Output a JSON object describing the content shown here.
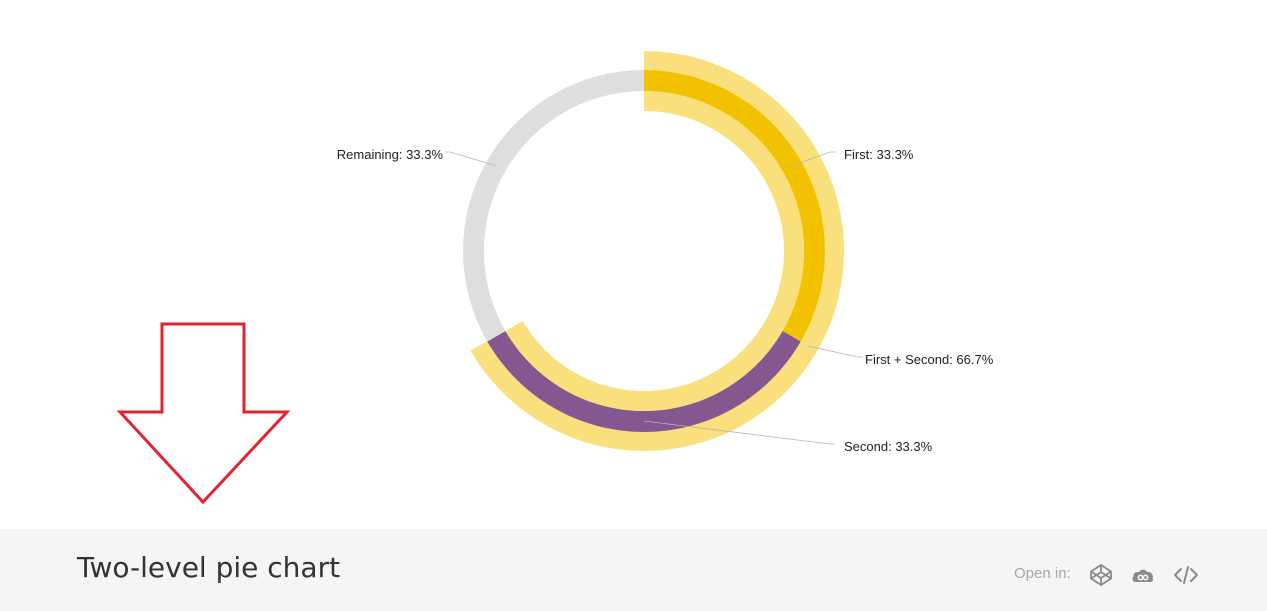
{
  "chart_data": {
    "type": "pie",
    "title": "Two-level pie chart",
    "levels": [
      {
        "level": "outer",
        "slices": [
          {
            "label": "First + Second",
            "value": 66.7,
            "display": "First + Second: 66.7%",
            "color": "#f9e07d"
          }
        ]
      },
      {
        "level": "inner",
        "slices": [
          {
            "label": "First",
            "value": 33.3,
            "display": "First: 33.3%",
            "color": "#f2c200"
          },
          {
            "label": "Second",
            "value": 33.3,
            "display": "Second: 33.3%",
            "color": "#83578f"
          },
          {
            "label": "Remaining",
            "value": 33.3,
            "display": "Remaining: 33.3%",
            "color": "#dedede"
          }
        ]
      }
    ],
    "colors": {
      "inner_highlight_band": "#f9e07d"
    }
  },
  "footer": {
    "title": "Two-level pie chart",
    "open_in_label": "Open in:",
    "icons": [
      {
        "name": "codepen-icon"
      },
      {
        "name": "cloud-icon"
      },
      {
        "name": "code-icon"
      }
    ]
  },
  "annotation": {
    "icon": "arrow-down-icon",
    "color": "#e3232b"
  }
}
